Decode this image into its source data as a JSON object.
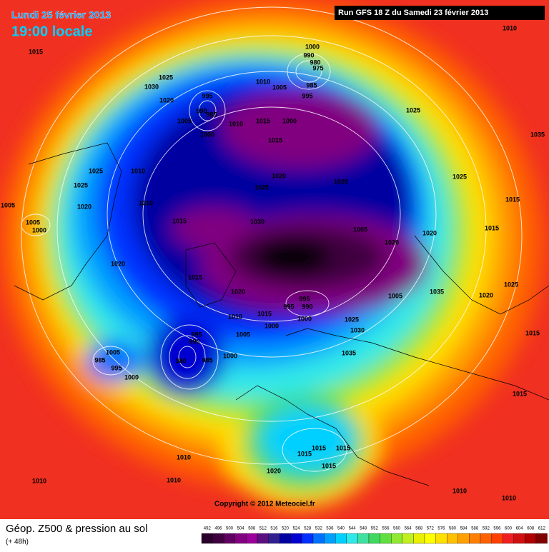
{
  "header": {
    "date": "Lundi 25 février 2013",
    "time": "19:00 locale",
    "run": "Run GFS 18 Z du Samedi 23 février 2013"
  },
  "map": {
    "copyright": "Copyright © 2012 Meteociel.fr",
    "isobar_labels": [
      "1010",
      "1015",
      "1000",
      "990",
      "980",
      "975",
      "1025",
      "1030",
      "1010",
      "1005",
      "985",
      "995",
      "1020",
      "995",
      "990",
      "985",
      "1005",
      "1010",
      "1015",
      "1000",
      "1000",
      "1015",
      "1025",
      "1035",
      "1025",
      "1010",
      "1020",
      "1025",
      "1020",
      "1025",
      "1025",
      "1015",
      "1020",
      "1005",
      "1010",
      "1030",
      "1015",
      "1005",
      "1020",
      "1015",
      "1005",
      "1000",
      "1020",
      "1020",
      "1015",
      "1020",
      "1005",
      "1035",
      "1020",
      "1025",
      "995",
      "995",
      "990",
      "1010",
      "1015",
      "1000",
      "1000",
      "1025",
      "1030",
      "1015",
      "995",
      "990",
      "1005",
      "1035",
      "1005",
      "985",
      "995",
      "1000",
      "980",
      "985",
      "1000",
      "1015",
      "1015",
      "1015",
      "1015",
      "1015",
      "1010",
      "1020",
      "1010",
      "1010",
      "1010",
      "1010"
    ]
  },
  "legend": {
    "title": "Géop. Z500 & pression au sol",
    "lead": "(+ 48h)",
    "scale": [
      492,
      496,
      500,
      504,
      508,
      512,
      516,
      520,
      524,
      528,
      532,
      536,
      540,
      544,
      548,
      552,
      556,
      560,
      564,
      568,
      572,
      576,
      580,
      584,
      588,
      592,
      596,
      600,
      604,
      608,
      612
    ],
    "colors": [
      "#2a002a",
      "#400040",
      "#600060",
      "#800080",
      "#9a009a",
      "#5a1080",
      "#302090",
      "#0000a0",
      "#0000d0",
      "#0030ff",
      "#0070ff",
      "#00a0ff",
      "#00d0ff",
      "#30e8e8",
      "#40e0a0",
      "#40d860",
      "#60e040",
      "#90e830",
      "#c0f020",
      "#e8f000",
      "#ffff00",
      "#ffe000",
      "#ffc000",
      "#ffa000",
      "#ff8000",
      "#ff6000",
      "#ff4000",
      "#f02020",
      "#d01010",
      "#b00000",
      "#800000"
    ]
  }
}
